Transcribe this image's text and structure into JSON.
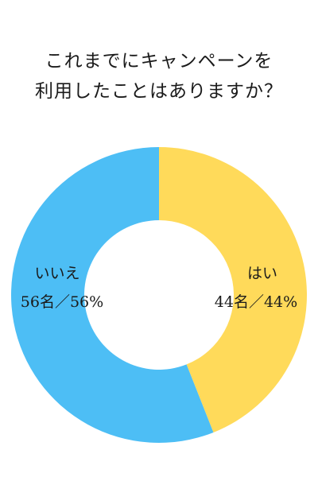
{
  "chart_data": {
    "type": "pie",
    "title": [
      "これまでにキャンペーンを",
      "利用したことはありますか？"
    ],
    "slices": [
      {
        "label": "はい",
        "count_label": "44名／44%",
        "value": 44,
        "color": "#FFDA5A"
      },
      {
        "label": "いいえ",
        "count_label": "56名／56%",
        "value": 56,
        "color": "#4DBEF5"
      }
    ],
    "donut": true
  }
}
